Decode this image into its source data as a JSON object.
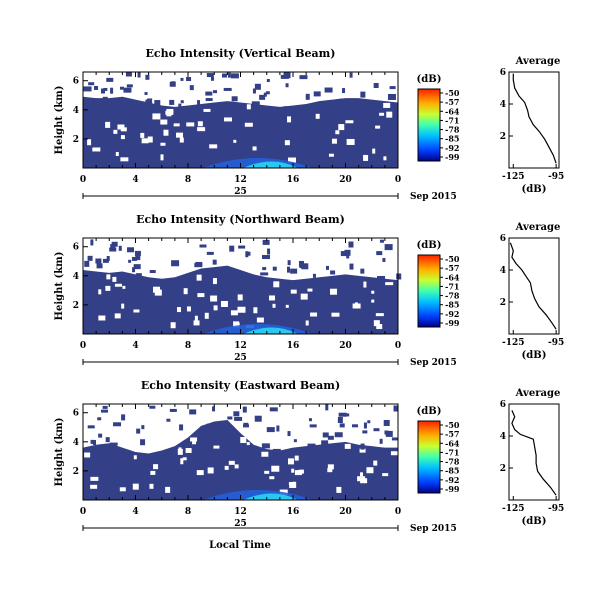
{
  "chart_data": [
    {
      "type": "heatmap",
      "title": "Echo Intensity (Vertical Beam)",
      "ylabel": "Height (km)",
      "xticks": [
        "0",
        "4",
        "8",
        "12",
        "16",
        "20",
        "0"
      ],
      "yticks": [
        "6",
        "4",
        "2"
      ],
      "date_axis": {
        "day": "25",
        "month": "Sep 2015"
      },
      "colorbar": {
        "unit": "(dB)",
        "ticks": [
          "-50",
          "-57",
          "-64",
          "-71",
          "-78",
          "-85",
          "-92",
          "-99"
        ]
      },
      "coverage_boundary_km": [
        4.9,
        4.8,
        4.8,
        4.9,
        4.7,
        4.5,
        4.3,
        4.2,
        4.3,
        4.4,
        4.5,
        4.6,
        4.5,
        4.4,
        4.3,
        4.2,
        4.3,
        4.4,
        4.6,
        4.7,
        4.8,
        4.8,
        4.7,
        4.6,
        4.5
      ],
      "average": {
        "title": "Average",
        "xlabel": "(dB)",
        "xticks": [
          "-125",
          "-95"
        ],
        "yticks": [
          "6",
          "4",
          "2"
        ],
        "xlim": [
          -128,
          -93
        ],
        "ylim": [
          0,
          6
        ],
        "profile": [
          [
            -95,
            0.3
          ],
          [
            -97,
            0.8
          ],
          [
            -100,
            1.3
          ],
          [
            -103,
            1.8
          ],
          [
            -107,
            2.3
          ],
          [
            -111,
            2.7
          ],
          [
            -114,
            3.2
          ],
          [
            -115,
            3.6
          ],
          [
            -117,
            4.1
          ],
          [
            -121,
            4.5
          ],
          [
            -124,
            5.0
          ],
          [
            -125,
            5.5
          ],
          [
            -125,
            5.9
          ]
        ]
      }
    },
    {
      "type": "heatmap",
      "title": "Echo Intensity (Northward Beam)",
      "ylabel": "Height (km)",
      "xticks": [
        "0",
        "4",
        "8",
        "12",
        "16",
        "20",
        "0"
      ],
      "yticks": [
        "6",
        "4",
        "2"
      ],
      "date_axis": {
        "day": "25",
        "month": "Sep 2015"
      },
      "colorbar": {
        "unit": "(dB)",
        "ticks": [
          "-50",
          "-57",
          "-64",
          "-71",
          "-78",
          "-85",
          "-92",
          "-99"
        ]
      },
      "coverage_boundary_km": [
        4.4,
        4.3,
        4.2,
        4.3,
        4.1,
        3.9,
        3.8,
        3.9,
        4.2,
        4.5,
        4.6,
        4.7,
        4.4,
        4.1,
        3.9,
        3.8,
        3.7,
        3.8,
        3.9,
        4.0,
        4.1,
        4.0,
        3.9,
        3.8,
        3.7
      ],
      "average": {
        "title": "Average",
        "xlabel": "(dB)",
        "xticks": [
          "-125",
          "-95"
        ],
        "yticks": [
          "6",
          "4",
          "2"
        ],
        "xlim": [
          -128,
          -93
        ],
        "ylim": [
          0,
          6
        ],
        "profile": [
          [
            -95,
            0.3
          ],
          [
            -98,
            0.7
          ],
          [
            -102,
            1.2
          ],
          [
            -107,
            1.7
          ],
          [
            -110,
            2.2
          ],
          [
            -112,
            2.7
          ],
          [
            -113,
            3.2
          ],
          [
            -116,
            3.6
          ],
          [
            -119,
            4.0
          ],
          [
            -123,
            4.4
          ],
          [
            -126,
            4.8
          ],
          [
            -125,
            5.2
          ],
          [
            -127,
            5.7
          ]
        ]
      }
    },
    {
      "type": "heatmap",
      "title": "Echo Intensity (Eastward Beam)",
      "ylabel": "Height (km)",
      "xticks": [
        "0",
        "4",
        "8",
        "12",
        "16",
        "20",
        "0"
      ],
      "yticks": [
        "6",
        "4",
        "2"
      ],
      "date_axis": {
        "day": "25",
        "month": "Sep 2015"
      },
      "colorbar": {
        "unit": "(dB)",
        "ticks": [
          "-50",
          "-57",
          "-64",
          "-71",
          "-78",
          "-85",
          "-92",
          "-99"
        ]
      },
      "coverage_boundary_km": [
        3.6,
        3.8,
        3.9,
        3.6,
        3.3,
        3.2,
        3.4,
        3.7,
        4.3,
        5.1,
        5.4,
        5.5,
        4.6,
        3.8,
        3.5,
        3.4,
        3.6,
        3.7,
        3.8,
        3.9,
        4.0,
        3.8,
        3.7,
        3.6,
        3.6
      ],
      "average": {
        "title": "Average",
        "xlabel": "(dB)",
        "xticks": [
          "-125",
          "-95"
        ],
        "yticks": [
          "6",
          "4",
          "2"
        ],
        "xlim": [
          -128,
          -93
        ],
        "ylim": [
          0,
          6
        ],
        "profile": [
          [
            -95,
            0.3
          ],
          [
            -99,
            0.8
          ],
          [
            -104,
            1.3
          ],
          [
            -108,
            1.8
          ],
          [
            -109,
            2.3
          ],
          [
            -109,
            2.8
          ],
          [
            -110,
            3.3
          ],
          [
            -111,
            3.8
          ],
          [
            -120,
            4.1
          ],
          [
            -124,
            4.4
          ],
          [
            -126,
            4.8
          ],
          [
            -124,
            5.2
          ],
          [
            -126,
            5.6
          ]
        ]
      }
    }
  ],
  "bottom_xlabel": "Local Time",
  "colors": {
    "background_echo": "#333f86",
    "gradient": [
      "#0000aa",
      "#0050ff",
      "#00c8ff",
      "#4cff9a",
      "#d8ff1e",
      "#ffa000",
      "#ff2000"
    ]
  }
}
